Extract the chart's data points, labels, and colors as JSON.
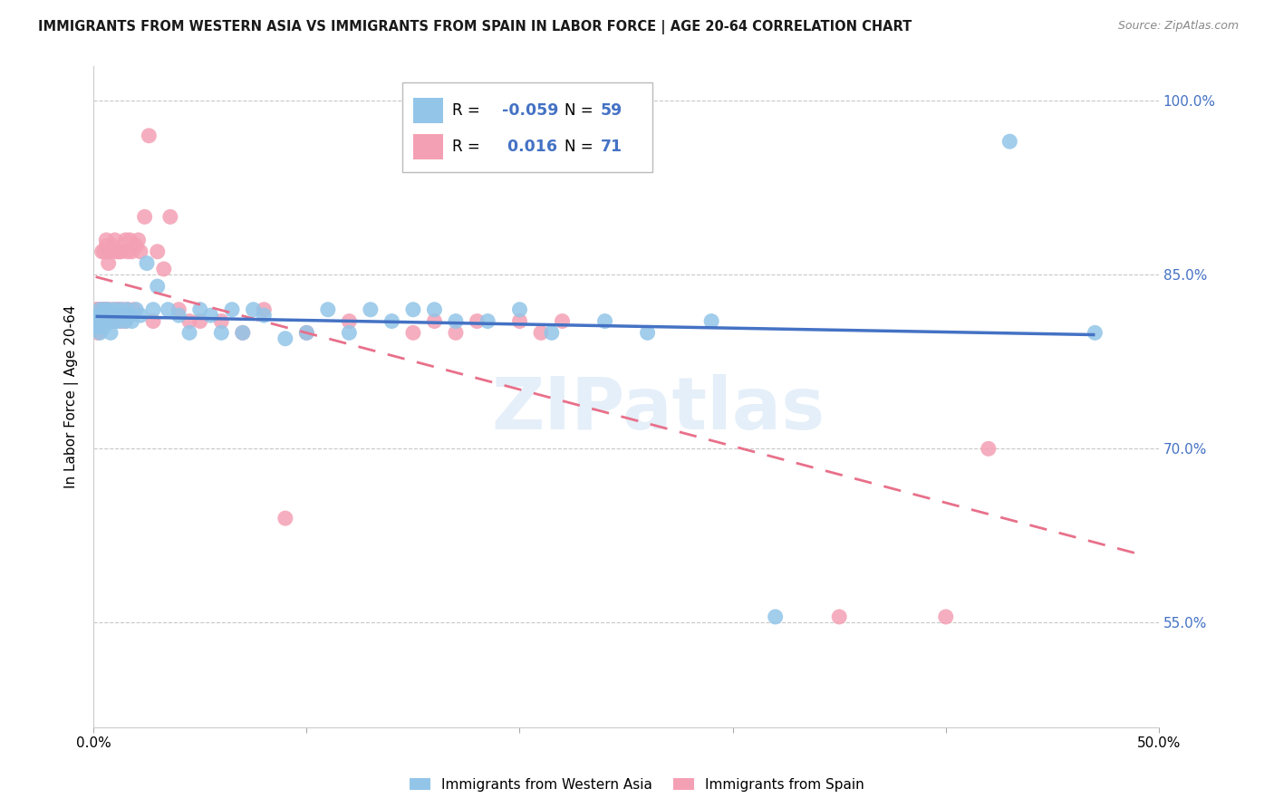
{
  "title": "IMMIGRANTS FROM WESTERN ASIA VS IMMIGRANTS FROM SPAIN IN LABOR FORCE | AGE 20-64 CORRELATION CHART",
  "source": "Source: ZipAtlas.com",
  "ylabel": "In Labor Force | Age 20-64",
  "xlim": [
    0.0,
    0.5
  ],
  "ylim": [
    0.46,
    1.03
  ],
  "x_ticks": [
    0.0,
    0.1,
    0.2,
    0.3,
    0.4,
    0.5
  ],
  "x_tick_labels": [
    "0.0%",
    "",
    "",
    "",
    "",
    "50.0%"
  ],
  "y_tick_labels": [
    "55.0%",
    "70.0%",
    "85.0%",
    "100.0%"
  ],
  "y_ticks": [
    0.55,
    0.7,
    0.85,
    1.0
  ],
  "blue_color": "#92C5E8",
  "pink_color": "#F4A0B4",
  "blue_line_color": "#4472C4",
  "pink_line_color": "#E8708A",
  "legend_blue_label": "Immigrants from Western Asia",
  "legend_pink_label": "Immigrants from Spain",
  "R_blue": -0.059,
  "N_blue": 59,
  "R_pink": 0.016,
  "N_pink": 71,
  "watermark": "ZIPatlas",
  "background_color": "#ffffff",
  "grid_color": "#c8c8c8",
  "title_color": "#1a1a1a",
  "source_color": "#888888",
  "right_axis_color": "#4472C4"
}
